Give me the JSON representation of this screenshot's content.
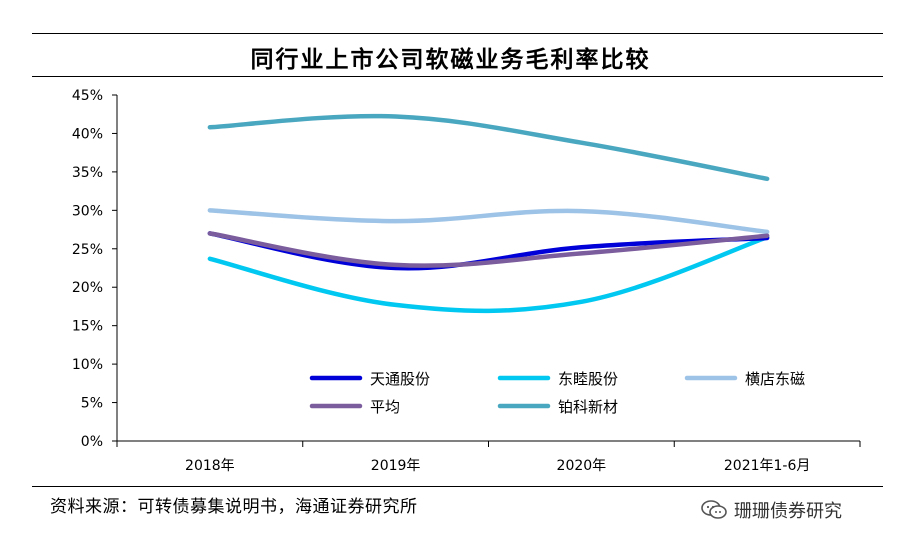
{
  "title": "同行业上市公司软磁业务毛利率比较",
  "source": "资料来源：可转债募集说明书，海通证券研究所",
  "watermark": "珊珊债券研究",
  "chart_data": {
    "type": "line",
    "title": "同行业上市公司软磁业务毛利率比较",
    "categories": [
      "2018年",
      "2019年",
      "2020年",
      "2021年1-6月"
    ],
    "ylim": [
      0,
      45
    ],
    "yticks": [
      0,
      5,
      10,
      15,
      20,
      25,
      30,
      35,
      40,
      45
    ],
    "ytick_labels": [
      "0%",
      "5%",
      "10%",
      "15%",
      "20%",
      "25%",
      "30%",
      "35%",
      "40%",
      "45%"
    ],
    "grid": false,
    "legend_position": "bottom-inside",
    "series": [
      {
        "name": "天通股份",
        "color": "#0000d8",
        "values": [
          27.0,
          22.5,
          25.2,
          26.4
        ]
      },
      {
        "name": "东睦股份",
        "color": "#00c8f0",
        "values": [
          23.7,
          17.7,
          18.1,
          26.5
        ]
      },
      {
        "name": "横店东磁",
        "color": "#9dc3e6",
        "values": [
          30.0,
          28.6,
          29.9,
          27.2
        ]
      },
      {
        "name": "平均",
        "color": "#7b5c9c",
        "values": [
          27.0,
          22.9,
          24.4,
          26.7
        ]
      },
      {
        "name": "铂科新材",
        "color": "#4aa7c0",
        "values": [
          40.8,
          42.2,
          38.8,
          34.1
        ]
      }
    ]
  }
}
